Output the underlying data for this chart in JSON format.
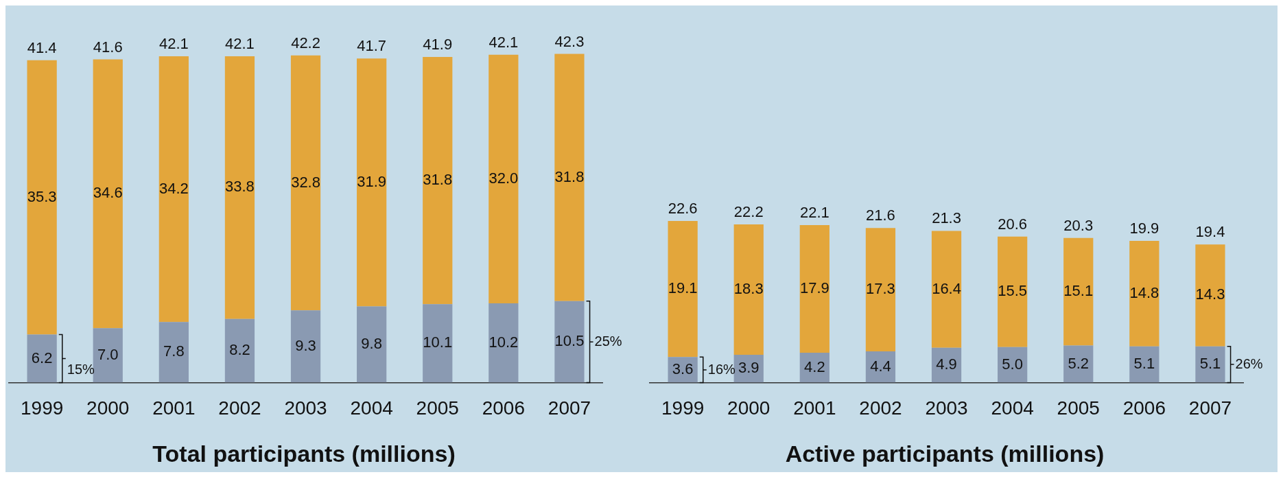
{
  "chart_data": [
    {
      "type": "bar",
      "title": "Total participants (millions)",
      "categories": [
        "1999",
        "2000",
        "2001",
        "2002",
        "2003",
        "2004",
        "2005",
        "2006",
        "2007"
      ],
      "stacked": true,
      "series": [
        {
          "color": "#8a9ab2",
          "values": [
            6.2,
            7.0,
            7.8,
            8.2,
            9.3,
            9.8,
            10.1,
            10.2,
            10.5
          ],
          "value_labels": [
            "6.2",
            "7.0",
            "7.8",
            "8.2",
            "9.3",
            "9.8",
            "10.1",
            "10.2",
            "10.5"
          ]
        },
        {
          "color": "#e3a63b",
          "values": [
            35.3,
            34.6,
            34.2,
            33.8,
            32.8,
            31.9,
            31.8,
            32.0,
            31.8
          ],
          "value_labels": [
            "35.3",
            "34.6",
            "34.2",
            "33.8",
            "32.8",
            "31.9",
            "31.8",
            "32.0",
            "31.8"
          ]
        }
      ],
      "totals": [
        "41.4",
        "41.6",
        "42.1",
        "42.1",
        "42.2",
        "41.7",
        "41.9",
        "42.1",
        "42.3"
      ],
      "annotations": [
        {
          "text": "15%",
          "x": "1999",
          "y": 6.2
        },
        {
          "text": "25%",
          "x": "2007",
          "y": 10.5
        }
      ]
    },
    {
      "type": "bar",
      "title": "Active participants (millions)",
      "categories": [
        "1999",
        "2000",
        "2001",
        "2002",
        "2003",
        "2004",
        "2005",
        "2006",
        "2007"
      ],
      "stacked": true,
      "series": [
        {
          "color": "#8a9ab2",
          "values": [
            3.6,
            3.9,
            4.2,
            4.4,
            4.9,
            5.0,
            5.2,
            5.1,
            5.1
          ],
          "value_labels": [
            "3.6",
            "3.9",
            "4.2",
            "4.4",
            "4.9",
            "5.0",
            "5.2",
            "5.1",
            "5.1"
          ]
        },
        {
          "color": "#e3a63b",
          "values": [
            19.1,
            18.3,
            17.9,
            17.3,
            16.4,
            15.5,
            15.1,
            14.8,
            14.3
          ],
          "value_labels": [
            "19.1",
            "18.3",
            "17.9",
            "17.3",
            "16.4",
            "15.5",
            "15.1",
            "14.8",
            "14.3"
          ]
        }
      ],
      "totals": [
        "22.6",
        "22.2",
        "22.1",
        "21.6",
        "21.3",
        "20.6",
        "20.3",
        "19.9",
        "19.4"
      ],
      "annotations": [
        {
          "text": "16%",
          "x": "1999",
          "y": 3.6
        },
        {
          "text": "26%",
          "x": "2007",
          "y": 5.1
        }
      ]
    }
  ]
}
